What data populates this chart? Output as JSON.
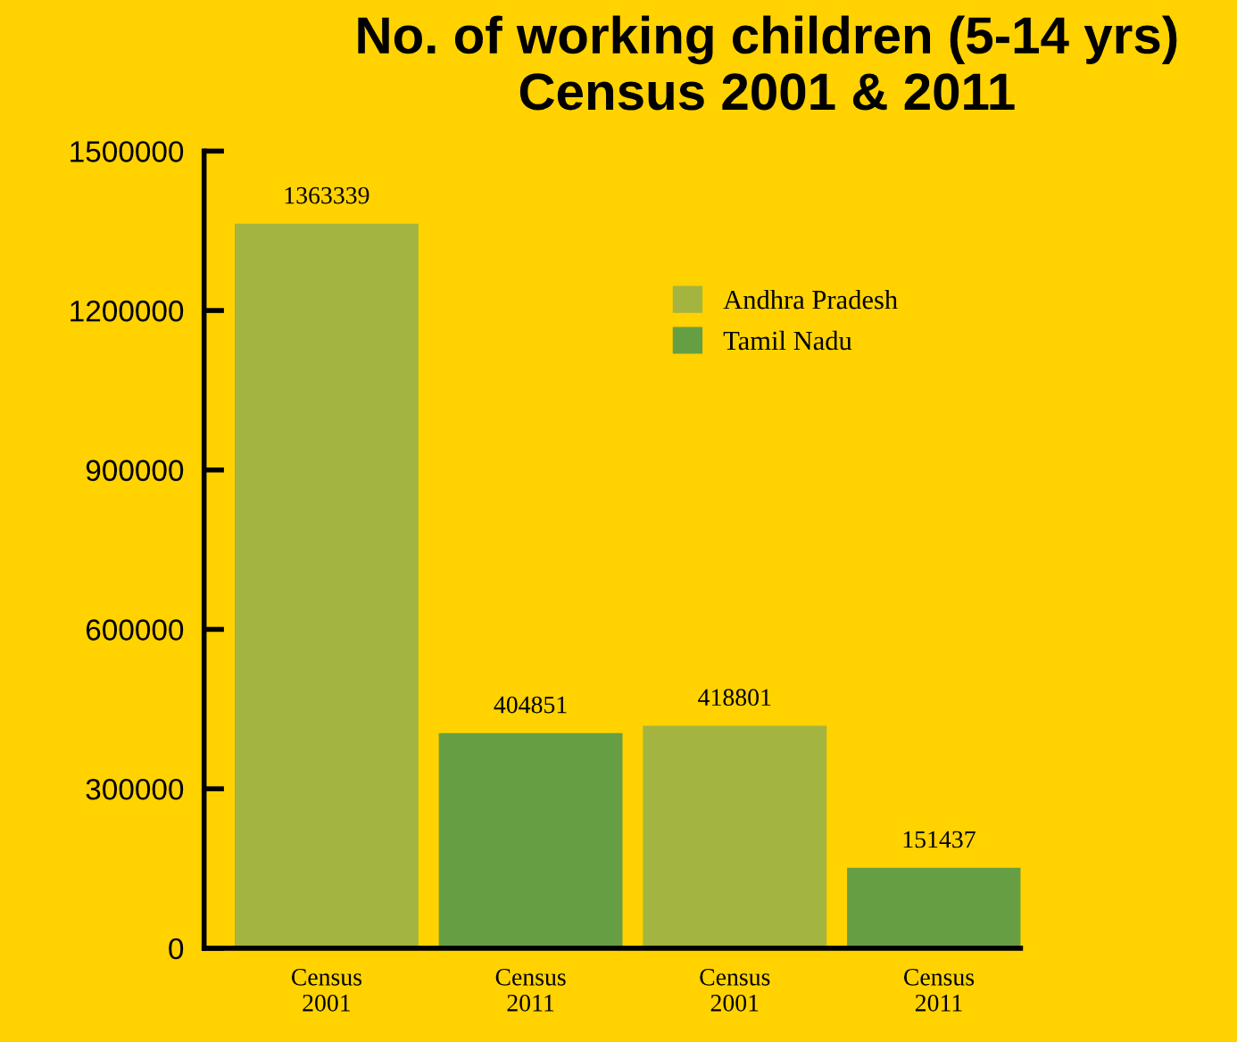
{
  "chart_data": {
    "type": "bar",
    "title": "No. of working children (5-14 yrs)\nCensus 2001 & 2011",
    "categories": [
      "Census\n2001",
      "Census\n2011",
      "Census\n2001",
      "Census\n2011"
    ],
    "series": [
      {
        "name": "Andhra Pradesh",
        "color": "#a3b540",
        "values": [
          1363339,
          null,
          418801,
          null
        ]
      },
      {
        "name": "Tamil Nadu",
        "color": "#669e44",
        "values": [
          null,
          404851,
          null,
          151437
        ]
      }
    ],
    "ylim": [
      0,
      1500000
    ],
    "yticks": [
      0,
      300000,
      600000,
      900000,
      1200000,
      1500000
    ],
    "data_labels": true,
    "legend": "top right",
    "grid": false
  }
}
